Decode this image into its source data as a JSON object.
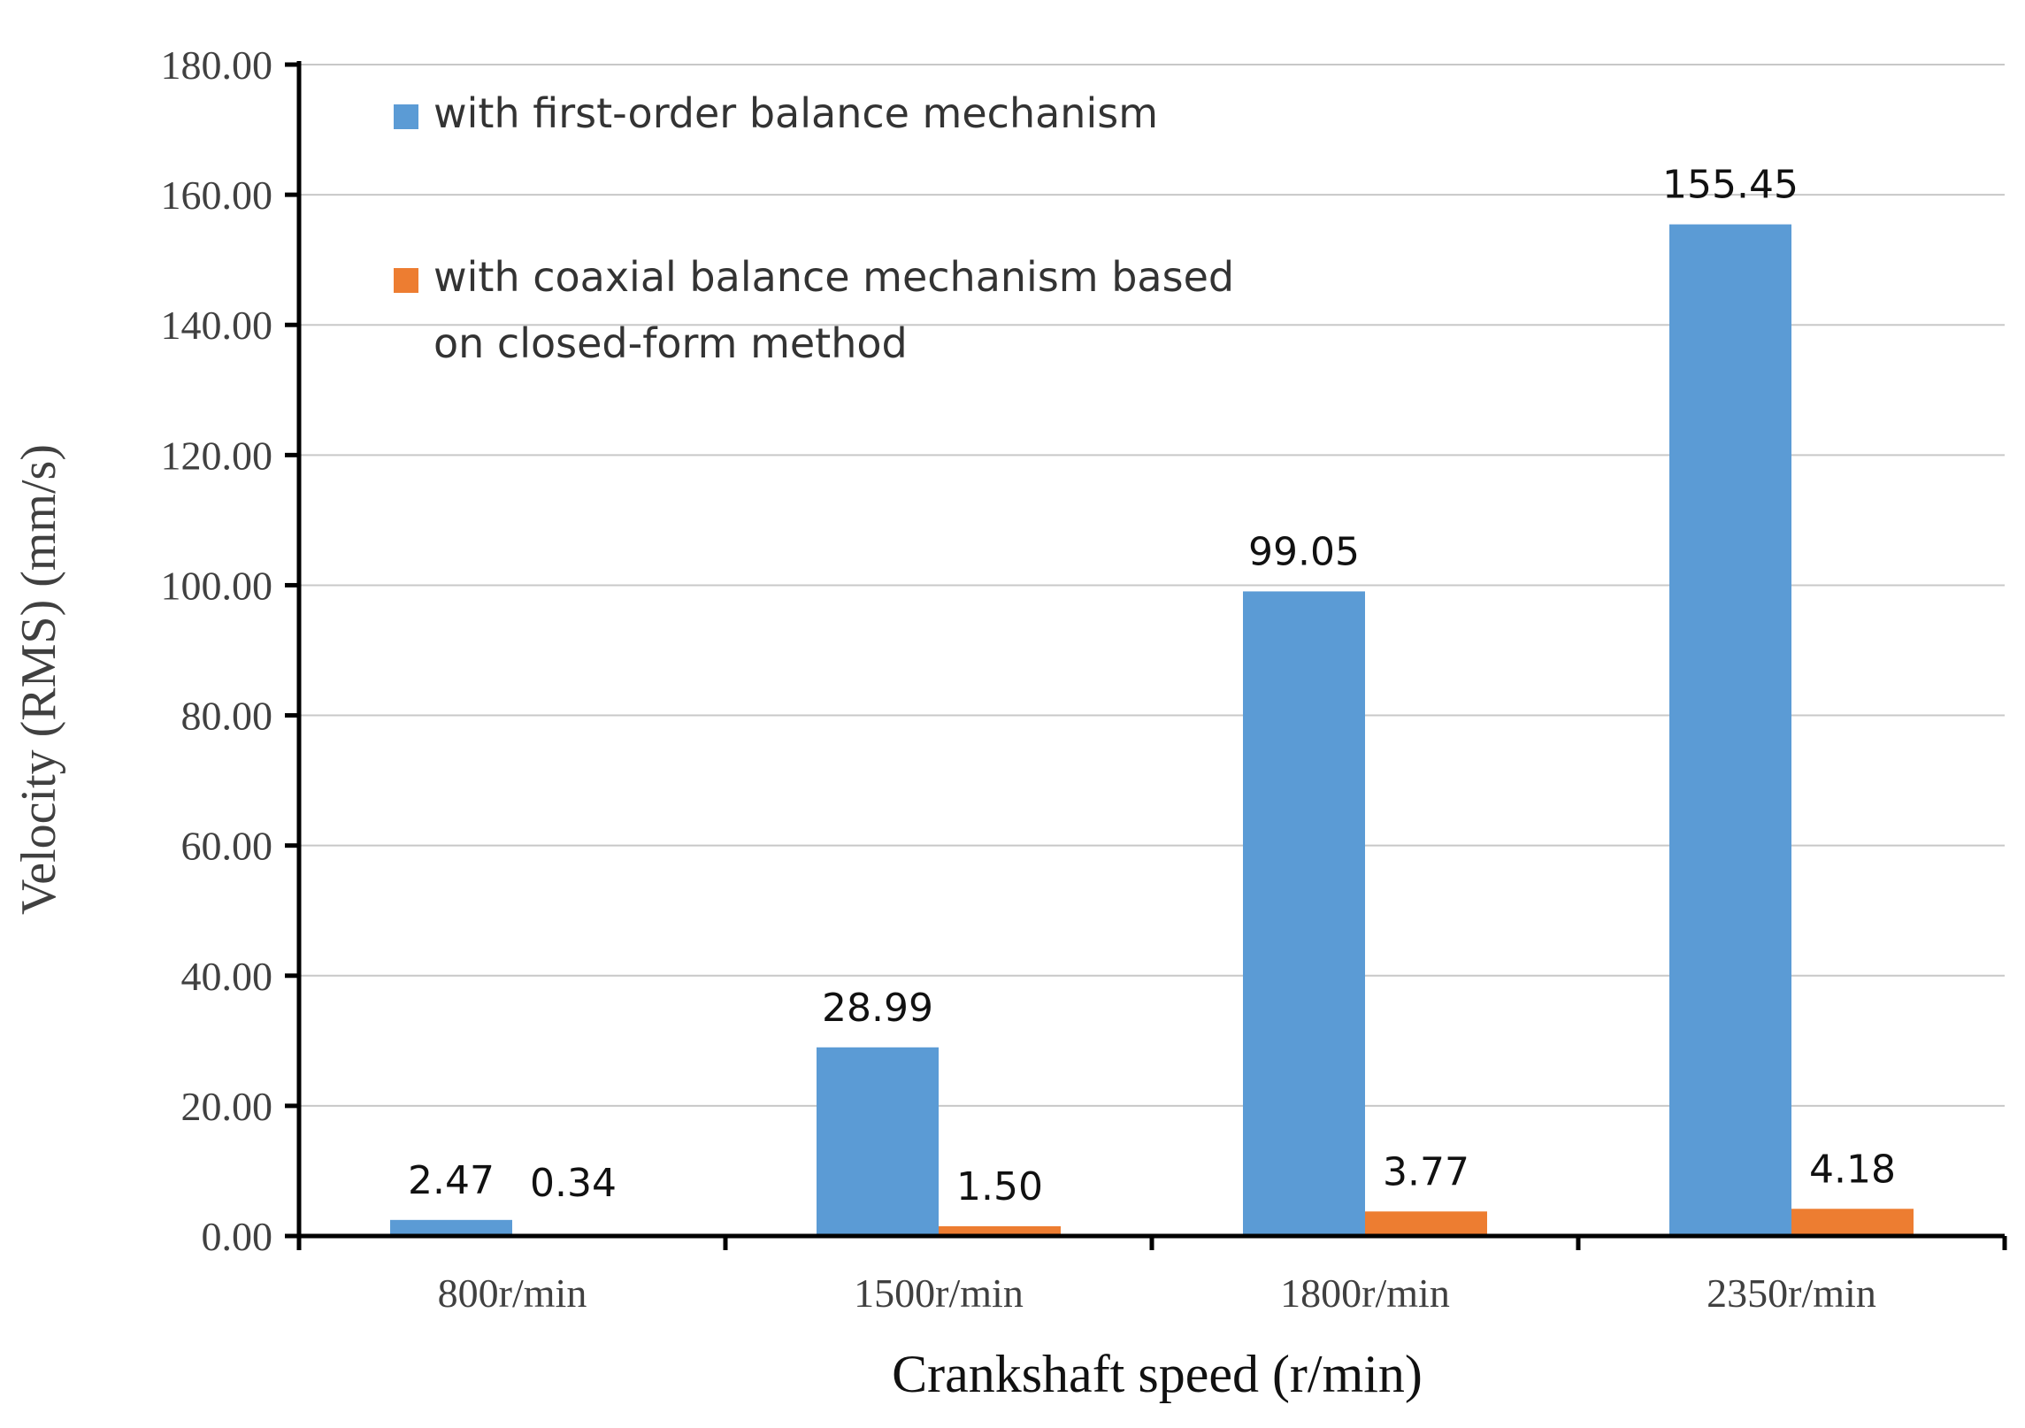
{
  "chart_data": {
    "type": "bar",
    "title": "",
    "xlabel": "Crankshaft speed (r/min)",
    "ylabel": "Velocity (RMS) (mm/s)",
    "ylim": [
      0,
      180
    ],
    "yticks": [
      0,
      20,
      40,
      60,
      80,
      100,
      120,
      140,
      160,
      180
    ],
    "ytick_labels": [
      "0.00",
      "20.00",
      "40.00",
      "60.00",
      "80.00",
      "100.00",
      "120.00",
      "140.00",
      "160.00",
      "180.00"
    ],
    "categories": [
      "800r/min",
      "1500r/min",
      "1800r/min",
      "2350r/min"
    ],
    "grid": true,
    "legend_position": "top-left",
    "series": [
      {
        "name": "with first-order balance mechanism",
        "legend_lines": [
          "with first-order balance mechanism"
        ],
        "color": "#5b9bd5",
        "values": [
          2.47,
          28.99,
          99.05,
          155.45
        ],
        "labels": [
          "2.47",
          "28.99",
          "99.05",
          "155.45"
        ]
      },
      {
        "name": "with coaxial balance mechanism based on closed-form method",
        "legend_lines": [
          "with coaxial balance mechanism based",
          "on closed-form method"
        ],
        "color": "#ed7d31",
        "values": [
          0.34,
          1.5,
          3.77,
          4.18
        ],
        "labels": [
          "0.34",
          "1.50",
          "3.77",
          "4.18"
        ]
      }
    ]
  }
}
